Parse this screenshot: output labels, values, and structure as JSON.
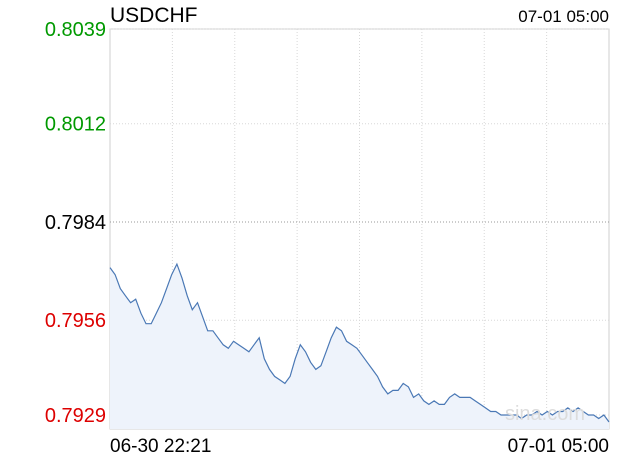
{
  "chart_data": {
    "type": "line",
    "title": "USDCHF",
    "timestamp": "07-01 05:00",
    "x_start_label": "06-30 22:21",
    "x_end_label": "07-01 05:00",
    "y_ticks": [
      {
        "label": "0.8039",
        "value": 0.8039,
        "color": "#009900"
      },
      {
        "label": "0.8012",
        "value": 0.8012,
        "color": "#009900"
      },
      {
        "label": "0.7984",
        "value": 0.7984,
        "color": "#000000"
      },
      {
        "label": "0.7956",
        "value": 0.7956,
        "color": "#dd0000"
      },
      {
        "label": "0.7929",
        "value": 0.7929,
        "color": "#dd0000"
      }
    ],
    "ylim": [
      0.7925,
      0.8039
    ],
    "reference_value": 0.7984,
    "vertical_gridlines": 8,
    "grid": true,
    "watermark": "sina.com",
    "line_color": "#4a78b5",
    "fill_color": "#eef3fb",
    "series": [
      {
        "values": [
          0.7971,
          0.7969,
          0.7965,
          0.7963,
          0.7961,
          0.7962,
          0.7958,
          0.7955,
          0.7955,
          0.7958,
          0.7961,
          0.7965,
          0.7969,
          0.7972,
          0.7968,
          0.7963,
          0.7959,
          0.7961,
          0.7957,
          0.7953,
          0.7953,
          0.7951,
          0.7949,
          0.7948,
          0.795,
          0.7949,
          0.7948,
          0.7947,
          0.7949,
          0.7951,
          0.7945,
          0.7942,
          0.794,
          0.7939,
          0.7938,
          0.794,
          0.7945,
          0.7949,
          0.7947,
          0.7944,
          0.7942,
          0.7943,
          0.7947,
          0.7951,
          0.7954,
          0.7953,
          0.795,
          0.7949,
          0.7948,
          0.7946,
          0.7944,
          0.7942,
          0.794,
          0.7937,
          0.7935,
          0.7936,
          0.7936,
          0.7938,
          0.7937,
          0.7934,
          0.7935,
          0.7933,
          0.7932,
          0.7933,
          0.7932,
          0.7932,
          0.7934,
          0.7935,
          0.7934,
          0.7934,
          0.7934,
          0.7933,
          0.7932,
          0.7931,
          0.793,
          0.793,
          0.7929,
          0.7929,
          0.7929,
          0.7929,
          0.7928,
          0.7929,
          0.7929,
          0.793,
          0.7929,
          0.793,
          0.7929,
          0.793,
          0.793,
          0.7931,
          0.793,
          0.7931,
          0.793,
          0.7929,
          0.7929,
          0.7928,
          0.7929,
          0.7927
        ]
      }
    ]
  }
}
